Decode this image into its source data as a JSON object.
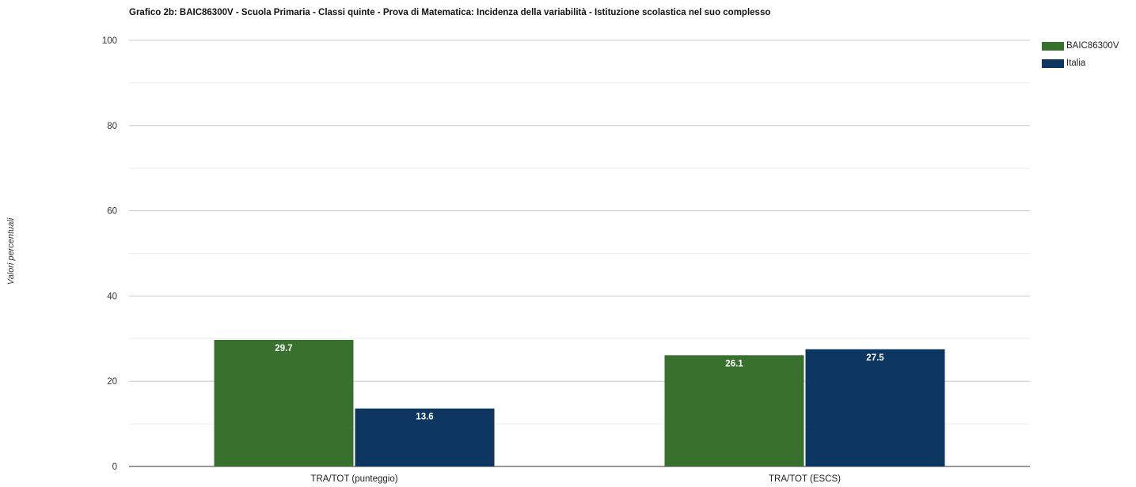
{
  "chart_data": {
    "type": "bar",
    "title": "Grafico 2b: BAIC86300V - Scuola Primaria - Classi quinte - Prova di Matematica: Incidenza della variabilità - Istituzione scolastica nel suo complesso",
    "ylabel": "Valori percentuali",
    "xlabel": "",
    "ylim": [
      0,
      100
    ],
    "yticks": [
      0,
      20,
      40,
      60,
      80,
      100
    ],
    "grid": true,
    "legend_position": "top-right",
    "categories": [
      "TRA/TOT (punteggio)",
      "TRA/TOT (ESCS)"
    ],
    "series": [
      {
        "name": "BAIC86300V",
        "color": "#38712d",
        "values": [
          29.7,
          26.1
        ],
        "labels": [
          "29.7",
          "26.1"
        ]
      },
      {
        "name": "Italia",
        "color": "#0d3761",
        "values": [
          13.6,
          27.5
        ],
        "labels": [
          "13.6",
          "27.5"
        ]
      }
    ]
  }
}
